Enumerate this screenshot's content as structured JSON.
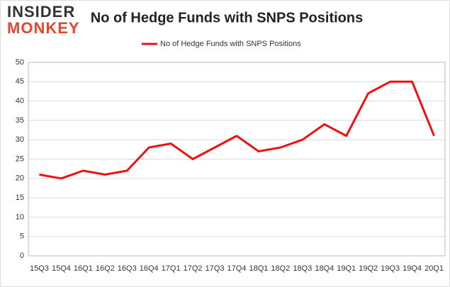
{
  "logo": {
    "line1": "INSIDER",
    "line2": "MONKEY"
  },
  "chart_data": {
    "type": "line",
    "title": "No of Hedge Funds with SNPS Positions",
    "categories": [
      "15Q3",
      "15Q4",
      "16Q1",
      "16Q2",
      "16Q3",
      "16Q4",
      "17Q1",
      "17Q2",
      "17Q3",
      "17Q4",
      "18Q1",
      "18Q2",
      "18Q3",
      "18Q4",
      "19Q1",
      "19Q2",
      "19Q3",
      "19Q4",
      "20Q1"
    ],
    "series": [
      {
        "name": "No of Hedge Funds with SNPS Positions",
        "color": "#ee1111",
        "values": [
          21,
          20,
          22,
          21,
          22,
          28,
          29,
          25,
          28,
          31,
          27,
          28,
          30,
          34,
          31,
          42,
          45,
          45,
          31
        ]
      }
    ],
    "ylim": [
      0,
      50
    ],
    "yticks": [
      0,
      5,
      10,
      15,
      20,
      25,
      30,
      35,
      40,
      45,
      50
    ],
    "grid": true,
    "legend": "top"
  }
}
